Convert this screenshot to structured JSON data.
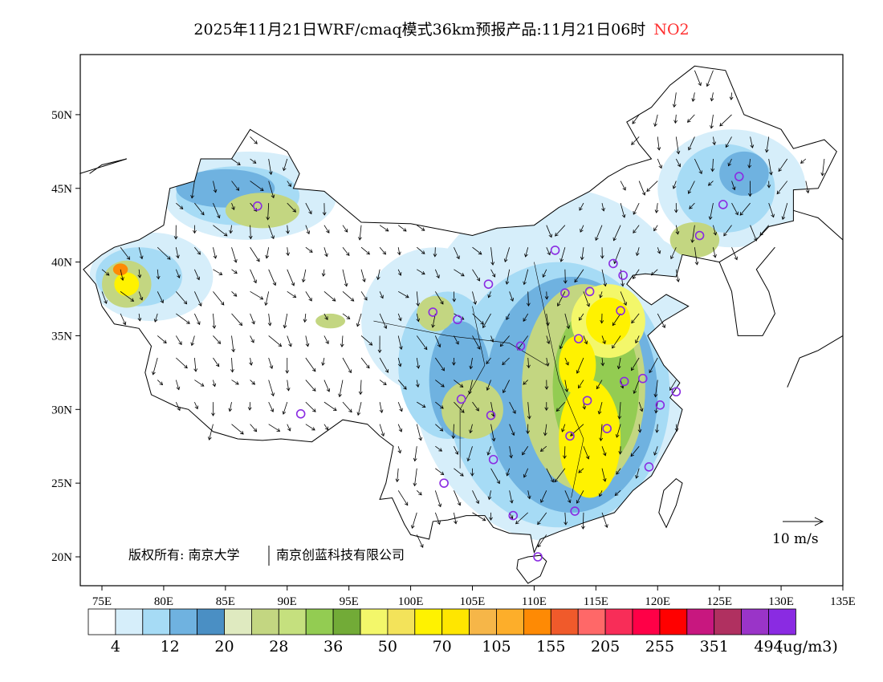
{
  "title": {
    "main": "2025年11月21日WRF/cmaq模式36km预报产品:11月21日06时",
    "species": "NO2",
    "species_color": "#ff3030"
  },
  "map": {
    "lon_ticks": [
      "75E",
      "80E",
      "85E",
      "90E",
      "95E",
      "100E",
      "105E",
      "110E",
      "115E",
      "120E",
      "125E",
      "130E",
      "135E"
    ],
    "lat_ticks": [
      "20N",
      "25N",
      "30N",
      "35N",
      "40N",
      "45N",
      "50N"
    ],
    "copyright": "版权所有: 南京大学",
    "copyright2": "南京创蓝科技有限公司",
    "wind_scale_label": "10 m/s"
  },
  "colorbar": {
    "colors": [
      "#ffffff",
      "#d6eefa",
      "#a6dbf5",
      "#6fb2e0",
      "#4a8fc4",
      "#dfeac0",
      "#c3d681",
      "#c5e07e",
      "#93cc52",
      "#72ab37",
      "#f3f76a",
      "#f3e35a",
      "#fff200",
      "#ffe600",
      "#f6b648",
      "#fdae2a",
      "#fe8a04",
      "#f05a2b",
      "#ff6868",
      "#f82d58",
      "#ff0047",
      "#ff0000",
      "#c8177f",
      "#b03060",
      "#9a34c8",
      "#8a2be2"
    ],
    "labels": [
      "4",
      "12",
      "20",
      "28",
      "36",
      "50",
      "70",
      "105",
      "155",
      "205",
      "255",
      "351",
      "494"
    ],
    "unit": "(ug/m3)"
  }
}
